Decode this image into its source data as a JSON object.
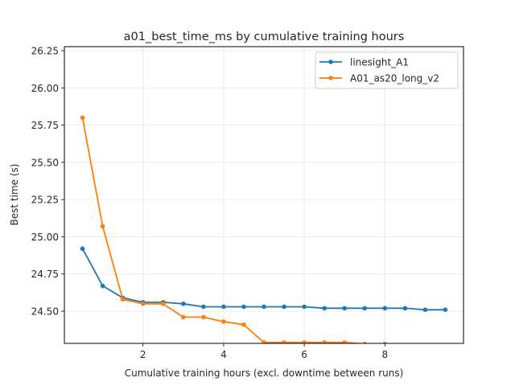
{
  "chart_data": {
    "type": "line",
    "title": "a01_best_time_ms by cumulative training hours",
    "xlabel": "Cumulative training hours (excl. downtime between runs)",
    "ylabel": "Best time (s)",
    "xlim": [
      0.05,
      9.95
    ],
    "ylim": [
      24.284,
      26.277
    ],
    "xticks": [
      2,
      4,
      6,
      8
    ],
    "yticks": [
      24.5,
      24.75,
      25.0,
      25.25,
      25.5,
      25.75,
      26.0,
      26.25
    ],
    "ytick_labels": [
      "24.50",
      "24.75",
      "25.00",
      "25.25",
      "25.50",
      "25.75",
      "26.00",
      "26.25"
    ],
    "grid": true,
    "legend_position": "upper right",
    "x": [
      0.5,
      1.0,
      1.5,
      2.0,
      2.5,
      3.0,
      3.5,
      4.0,
      4.5,
      5.0,
      5.5,
      6.0,
      6.5,
      7.0,
      7.5,
      8.0,
      8.5,
      9.0,
      9.5
    ],
    "series": [
      {
        "name": "linesight_A1",
        "color": "#1f77b4",
        "values": [
          24.92,
          24.67,
          24.59,
          24.56,
          24.56,
          24.55,
          24.53,
          24.53,
          24.53,
          24.53,
          24.53,
          24.53,
          24.52,
          24.52,
          24.52,
          24.52,
          24.52,
          24.51,
          24.51
        ]
      },
      {
        "name": "A01_as20_long_v2",
        "color": "#ff7f0e",
        "values": [
          25.8,
          25.07,
          24.58,
          24.55,
          24.55,
          24.46,
          24.46,
          24.43,
          24.41,
          24.29,
          24.29,
          24.29,
          24.29,
          24.29,
          24.28,
          24.28,
          24.27,
          24.27,
          24.27
        ]
      }
    ]
  }
}
